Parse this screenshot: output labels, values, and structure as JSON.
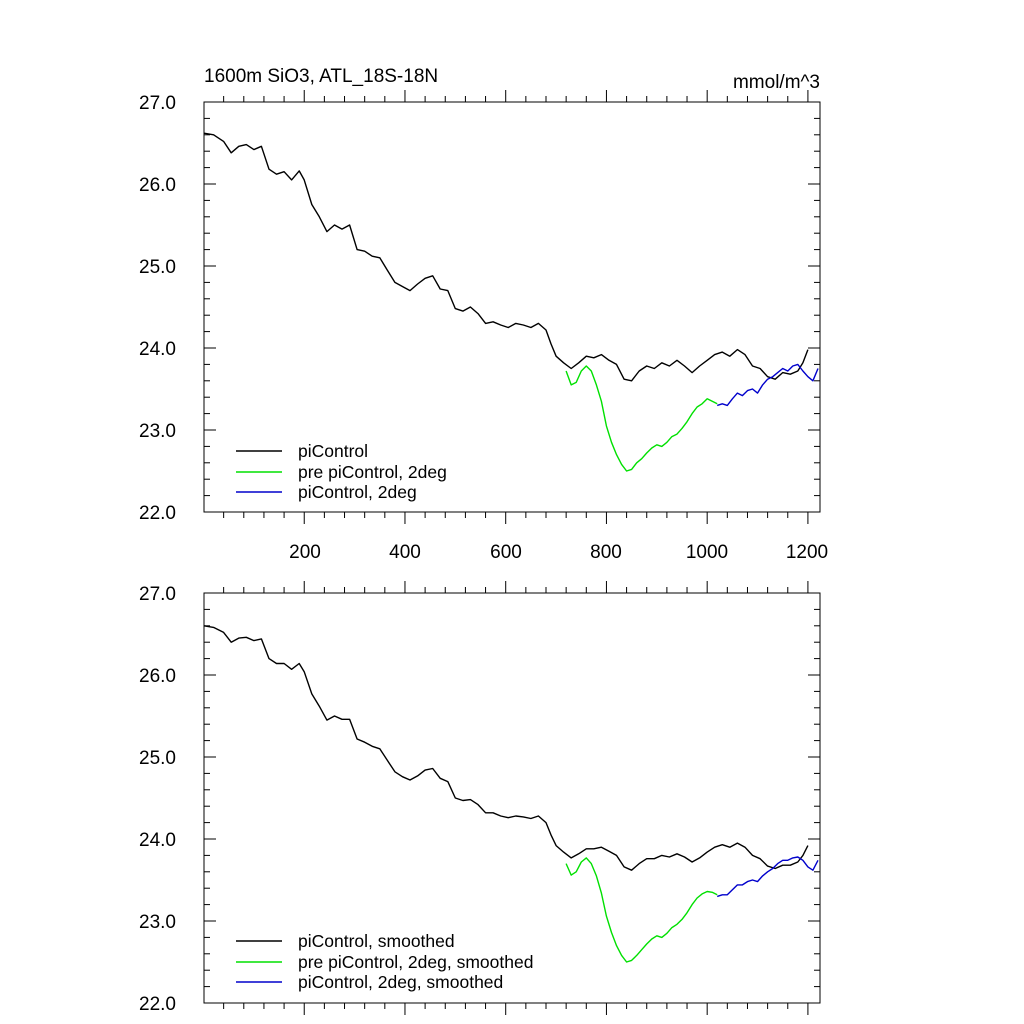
{
  "chart_data": [
    {
      "type": "line",
      "title_left": "1600m SiO3, ATL_18S-18N",
      "title_right": "mmol/m^3",
      "xlim": [
        1,
        1224
      ],
      "ylim": [
        22.0,
        27.0
      ],
      "x_ticks": [
        200,
        400,
        600,
        800,
        1000,
        1200
      ],
      "x_tick_labels": [
        "200",
        "400",
        "600",
        "800",
        "1000",
        "1200"
      ],
      "y_ticks": [
        22.0,
        23.0,
        24.0,
        25.0,
        26.0,
        27.0
      ],
      "y_tick_labels": [
        "22.0",
        "23.0",
        "24.0",
        "25.0",
        "26.0",
        "27.0"
      ],
      "legend_position": "bottom-left",
      "series": [
        {
          "name": "piControl",
          "color": "#000000",
          "x": [
            1,
            20,
            40,
            55,
            70,
            85,
            100,
            115,
            130,
            145,
            160,
            175,
            190,
            200,
            215,
            230,
            245,
            260,
            275,
            290,
            305,
            320,
            335,
            350,
            365,
            380,
            395,
            410,
            425,
            440,
            455,
            470,
            485,
            500,
            515,
            530,
            545,
            560,
            575,
            590,
            605,
            620,
            635,
            650,
            665,
            680,
            690,
            700,
            715,
            730,
            745,
            760,
            775,
            790,
            805,
            820,
            835,
            850,
            865,
            880,
            895,
            910,
            925,
            940,
            955,
            970,
            985,
            1000,
            1015,
            1030,
            1045,
            1060,
            1075,
            1090,
            1105,
            1120,
            1135,
            1150,
            1165,
            1180,
            1190,
            1200
          ],
          "y": [
            26.62,
            26.6,
            26.52,
            26.38,
            26.46,
            26.48,
            26.42,
            26.46,
            26.18,
            26.12,
            26.15,
            26.05,
            26.16,
            26.05,
            25.75,
            25.6,
            25.42,
            25.5,
            25.45,
            25.5,
            25.2,
            25.18,
            25.12,
            25.1,
            24.95,
            24.8,
            24.75,
            24.7,
            24.78,
            24.85,
            24.88,
            24.72,
            24.7,
            24.48,
            24.45,
            24.5,
            24.42,
            24.3,
            24.32,
            24.28,
            24.25,
            24.3,
            24.28,
            24.25,
            24.3,
            24.22,
            24.05,
            23.9,
            23.82,
            23.75,
            23.82,
            23.9,
            23.88,
            23.92,
            23.85,
            23.8,
            23.62,
            23.6,
            23.72,
            23.78,
            23.75,
            23.82,
            23.78,
            23.85,
            23.78,
            23.7,
            23.78,
            23.85,
            23.92,
            23.95,
            23.9,
            23.98,
            23.92,
            23.78,
            23.75,
            23.65,
            23.62,
            23.7,
            23.68,
            23.72,
            23.82,
            23.98
          ]
        },
        {
          "name": "pre piControl, 2deg",
          "color": "#00e000",
          "x": [
            720,
            730,
            740,
            750,
            760,
            770,
            780,
            790,
            800,
            810,
            820,
            830,
            840,
            850,
            860,
            870,
            880,
            890,
            900,
            910,
            920,
            930,
            940,
            950,
            960,
            970,
            980,
            990,
            1000,
            1010,
            1020
          ],
          "y": [
            23.72,
            23.55,
            23.58,
            23.72,
            23.78,
            23.72,
            23.55,
            23.35,
            23.05,
            22.85,
            22.7,
            22.58,
            22.5,
            22.52,
            22.6,
            22.65,
            22.72,
            22.78,
            22.82,
            22.8,
            22.85,
            22.92,
            22.95,
            23.02,
            23.1,
            23.2,
            23.28,
            23.32,
            23.38,
            23.35,
            23.32
          ]
        },
        {
          "name": "piControl, 2deg",
          "color": "#0000cc",
          "x": [
            1020,
            1030,
            1040,
            1050,
            1060,
            1070,
            1080,
            1090,
            1100,
            1110,
            1120,
            1130,
            1140,
            1150,
            1160,
            1170,
            1180,
            1190,
            1200,
            1210,
            1220
          ],
          "y": [
            23.3,
            23.32,
            23.3,
            23.38,
            23.45,
            23.42,
            23.48,
            23.5,
            23.45,
            23.55,
            23.62,
            23.65,
            23.7,
            23.75,
            23.72,
            23.78,
            23.8,
            23.72,
            23.65,
            23.6,
            23.75
          ]
        }
      ]
    },
    {
      "type": "line",
      "xlim": [
        1,
        1224
      ],
      "ylim": [
        22.0,
        27.0
      ],
      "y_ticks": [
        22.0,
        23.0,
        24.0,
        25.0,
        26.0,
        27.0
      ],
      "y_tick_labels": [
        "22.0",
        "23.0",
        "24.0",
        "25.0",
        "26.0",
        "27.0"
      ],
      "x_ticks": [
        200,
        400,
        600,
        800,
        1000,
        1200
      ],
      "legend_position": "bottom-left",
      "series": [
        {
          "name": "piControl, smoothed",
          "color": "#000000",
          "x": [
            1,
            20,
            40,
            55,
            70,
            85,
            100,
            115,
            130,
            145,
            160,
            175,
            190,
            200,
            215,
            230,
            245,
            260,
            275,
            290,
            305,
            320,
            335,
            350,
            365,
            380,
            395,
            410,
            425,
            440,
            455,
            470,
            485,
            500,
            515,
            530,
            545,
            560,
            575,
            590,
            605,
            620,
            635,
            650,
            665,
            680,
            690,
            700,
            715,
            730,
            745,
            760,
            775,
            790,
            805,
            820,
            835,
            850,
            865,
            880,
            895,
            910,
            925,
            940,
            955,
            970,
            985,
            1000,
            1015,
            1030,
            1045,
            1060,
            1075,
            1090,
            1105,
            1120,
            1135,
            1150,
            1165,
            1180,
            1190,
            1200
          ],
          "y": [
            26.6,
            26.58,
            26.52,
            26.4,
            26.45,
            26.46,
            26.42,
            26.44,
            26.2,
            26.14,
            26.14,
            26.07,
            26.14,
            26.04,
            25.77,
            25.62,
            25.45,
            25.5,
            25.46,
            25.46,
            25.22,
            25.18,
            25.13,
            25.1,
            24.96,
            24.82,
            24.76,
            24.72,
            24.77,
            24.84,
            24.86,
            24.74,
            24.7,
            24.5,
            24.47,
            24.48,
            24.42,
            24.32,
            24.32,
            24.28,
            24.26,
            24.28,
            24.27,
            24.25,
            24.28,
            24.2,
            24.05,
            23.92,
            23.84,
            23.77,
            23.82,
            23.88,
            23.88,
            23.9,
            23.85,
            23.8,
            23.66,
            23.62,
            23.7,
            23.76,
            23.76,
            23.8,
            23.78,
            23.82,
            23.78,
            23.72,
            23.77,
            23.84,
            23.9,
            23.93,
            23.9,
            23.95,
            23.9,
            23.8,
            23.76,
            23.67,
            23.64,
            23.68,
            23.68,
            23.72,
            23.8,
            23.92
          ]
        },
        {
          "name": "pre piControl, 2deg, smoothed",
          "color": "#00e000",
          "x": [
            720,
            730,
            740,
            750,
            760,
            770,
            780,
            790,
            800,
            810,
            820,
            830,
            840,
            850,
            860,
            870,
            880,
            890,
            900,
            910,
            920,
            930,
            940,
            950,
            960,
            970,
            980,
            990,
            1000,
            1010,
            1020
          ],
          "y": [
            23.7,
            23.56,
            23.6,
            23.72,
            23.77,
            23.7,
            23.55,
            23.34,
            23.06,
            22.86,
            22.7,
            22.58,
            22.5,
            22.52,
            22.58,
            22.65,
            22.72,
            22.78,
            22.82,
            22.8,
            22.85,
            22.92,
            22.96,
            23.02,
            23.1,
            23.2,
            23.28,
            23.33,
            23.36,
            23.35,
            23.32
          ]
        },
        {
          "name": "piControl, 2deg, smoothed",
          "color": "#0000cc",
          "x": [
            1020,
            1030,
            1040,
            1050,
            1060,
            1070,
            1080,
            1090,
            1100,
            1110,
            1120,
            1130,
            1140,
            1150,
            1160,
            1170,
            1180,
            1190,
            1200,
            1210,
            1220
          ],
          "y": [
            23.3,
            23.32,
            23.32,
            23.38,
            23.44,
            23.44,
            23.48,
            23.5,
            23.48,
            23.55,
            23.6,
            23.64,
            23.7,
            23.74,
            23.74,
            23.77,
            23.78,
            23.74,
            23.66,
            23.62,
            23.74
          ]
        }
      ]
    }
  ]
}
